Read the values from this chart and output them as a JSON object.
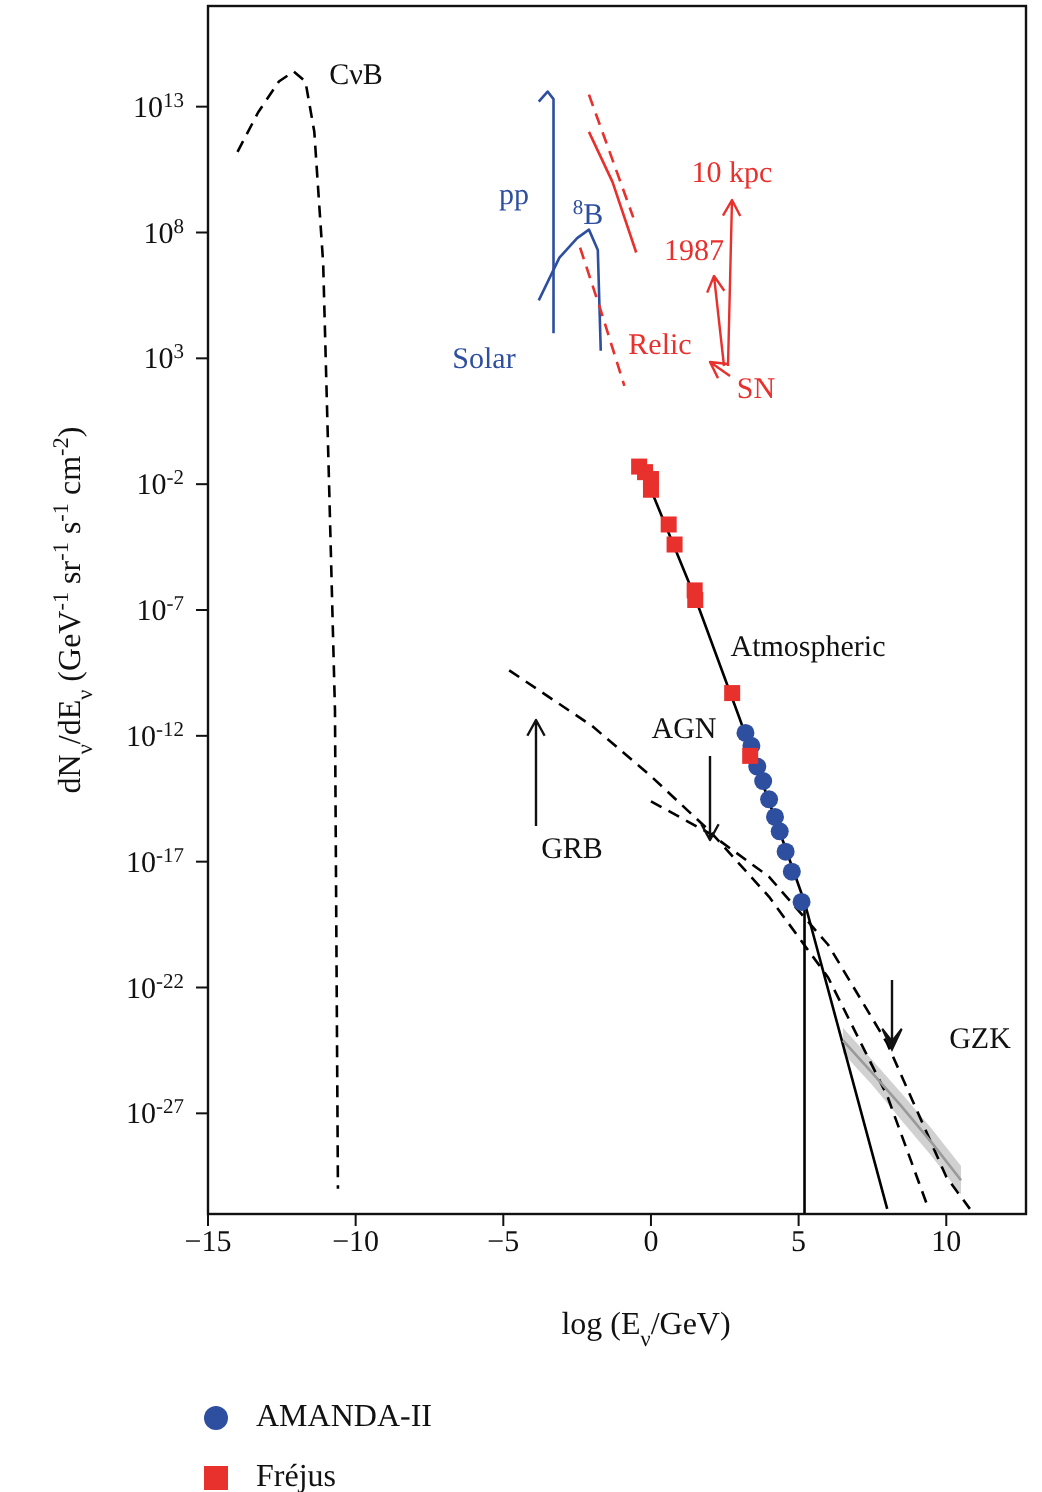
{
  "chart_data": {
    "type": "line",
    "xlabel": "log (E$_{ν}$/GeV)",
    "ylabel": "dN$_{ν}$/dE$_{ν}$ (GeV$^{-1}$ sr$^{-1}$ s$^{-1}$ cm$^{-2}$)",
    "log": "y",
    "legend": "bottom",
    "marker": "none",
    "xlim": [
      -15,
      12.7
    ],
    "xticks": [
      -15,
      -10,
      -5,
      0,
      5,
      10
    ],
    "ylim": [
      1e-31,
      1e+17
    ],
    "yticks": [
      {
        "value": 10000000000000.0,
        "label": "10$^{13}$"
      },
      {
        "value": 100000000.0,
        "label": "10$^{8}$"
      },
      {
        "value": 1000.0,
        "label": "10$^{3}$"
      },
      {
        "value": 0.01,
        "label": "10$^{-2}$"
      },
      {
        "value": 1e-07,
        "label": "10$^{-7}$"
      },
      {
        "value": 1e-12,
        "label": "10$^{-12}$"
      },
      {
        "value": 1e-17,
        "label": "10$^{-17}$"
      },
      {
        "value": 1e-22,
        "label": "10$^{-22}$"
      },
      {
        "value": 1e-27,
        "label": "10$^{-27}$"
      }
    ],
    "series": [
      {
        "color": "#000000",
        "line_style": "dashed",
        "x": [
          -14,
          -13.3,
          -12.6,
          -12.1,
          -11.7,
          -11.4,
          -11.1,
          -10.9,
          -10.7,
          -10.6
        ],
        "values": [
          160000000000.0,
          6000000000000.0,
          100000000000000.0,
          250000000000000.0,
          100000000000000.0,
          1000000000000.0,
          6000000.0,
          0.01,
          1e-11,
          1e-30
        ]
      },
      {
        "color": "#2e4fa0",
        "line_style": "solid",
        "x": [
          -3.8,
          -3.5,
          -3.3,
          -3.3
        ],
        "values": [
          16000000000000.0,
          40000000000000.0,
          20000000000000.0,
          10000.0
        ]
      },
      {
        "color": "#2e4fa0",
        "line_style": "solid",
        "x": [
          -3.8,
          -3.1,
          -2.5,
          -2.1,
          -1.8,
          -1.7
        ],
        "values": [
          200000.0,
          10000000.0,
          60000000.0,
          130000000.0,
          20000000.0,
          2000.0
        ]
      },
      {
        "color": "#e8302c",
        "line_style": "dashed",
        "x": [
          -2.1,
          -1.4,
          -0.6
        ],
        "values": [
          30000000000000.0,
          160000000000.0,
          400000000.0
        ]
      },
      {
        "color": "#e8302c",
        "line_style": "solid",
        "x": [
          -2.1,
          -1.3,
          -0.5
        ],
        "values": [
          1000000000000.0,
          10000000000.0,
          16000000.0
        ]
      },
      {
        "color": "#e8302c",
        "line_style": "dashed",
        "x": [
          -2.4,
          -1.7,
          -0.9
        ],
        "values": [
          25000000.0,
          80000.0,
          80
        ]
      },
      {
        "color": "#000000",
        "line_style": "solid",
        "x": [
          0,
          1.5,
          3,
          5.2,
          8
        ],
        "values": [
          0.006,
          3e-07,
          5e-12,
          2.5e-19,
          1.6e-31
        ]
      },
      {
        "color": "#000000",
        "line_style": "solid",
        "x": [
          5.2,
          5.2
        ],
        "values": [
          2.5e-19,
          1e-31
        ]
      },
      {
        "color": "#000000",
        "line_style": "dashed",
        "x": [
          -4.8,
          -2,
          0,
          2,
          4,
          6,
          8,
          9.4
        ],
        "values": [
          4e-10,
          2.5e-12,
          2.5e-14,
          1.6e-16,
          4e-19,
          2.5e-22,
          5e-27,
          1.6e-31
        ]
      },
      {
        "color": "#000000",
        "line_style": "dashed",
        "x": [
          0,
          2,
          4,
          6,
          8,
          10,
          10.8
        ],
        "values": [
          2.5e-15,
          1.3e-16,
          2.5e-18,
          5e-21,
          6e-25,
          3e-30,
          1.6e-31
        ]
      },
      {
        "color": "#9a9a9a",
        "line_style": "solid",
        "x": [
          6.5,
          7.5,
          8.5,
          9.5,
          10.5
        ],
        "values": [
          8e-25,
          4e-26,
          1.8e-27,
          7e-29,
          2.2e-30
        ],
        "lower": [
          2.5e-25,
          1.3e-26,
          5e-28,
          2e-29,
          6e-31
        ],
        "upper": [
          2.5e-24,
          1.3e-25,
          6e-27,
          2.5e-28,
          8e-30
        ]
      },
      {
        "type": "scatter",
        "name": "AMANDA-II",
        "color": "#2e4fa0",
        "marker": "circle",
        "x": [
          3.2,
          3.4,
          3.6,
          3.8,
          4.0,
          4.2,
          4.36,
          4.56,
          4.77,
          5.1
        ],
        "values": [
          1.3e-12,
          4e-13,
          6e-14,
          1.6e-14,
          3e-15,
          6e-16,
          1.6e-16,
          2.5e-17,
          4e-18,
          2.5e-19
        ]
      },
      {
        "type": "scatter",
        "name": "Fréjus",
        "color": "#e8302c",
        "marker": "square",
        "x": [
          -0.4,
          -0.2,
          0,
          0,
          0.6,
          0.8,
          1.48,
          1.5,
          2.75,
          3.36
        ],
        "values": [
          0.05,
          0.03,
          0.016,
          0.006,
          0.00025,
          4e-05,
          6e-07,
          2.5e-07,
          5e-11,
          1.6e-13
        ]
      }
    ],
    "annotations": [
      "CνB",
      "pp",
      "$^{8}$B",
      "Solar",
      "Relic",
      "SN",
      "1987",
      "10 kpc",
      "Atmospheric",
      "AGN",
      "GRB",
      "GZK"
    ]
  }
}
